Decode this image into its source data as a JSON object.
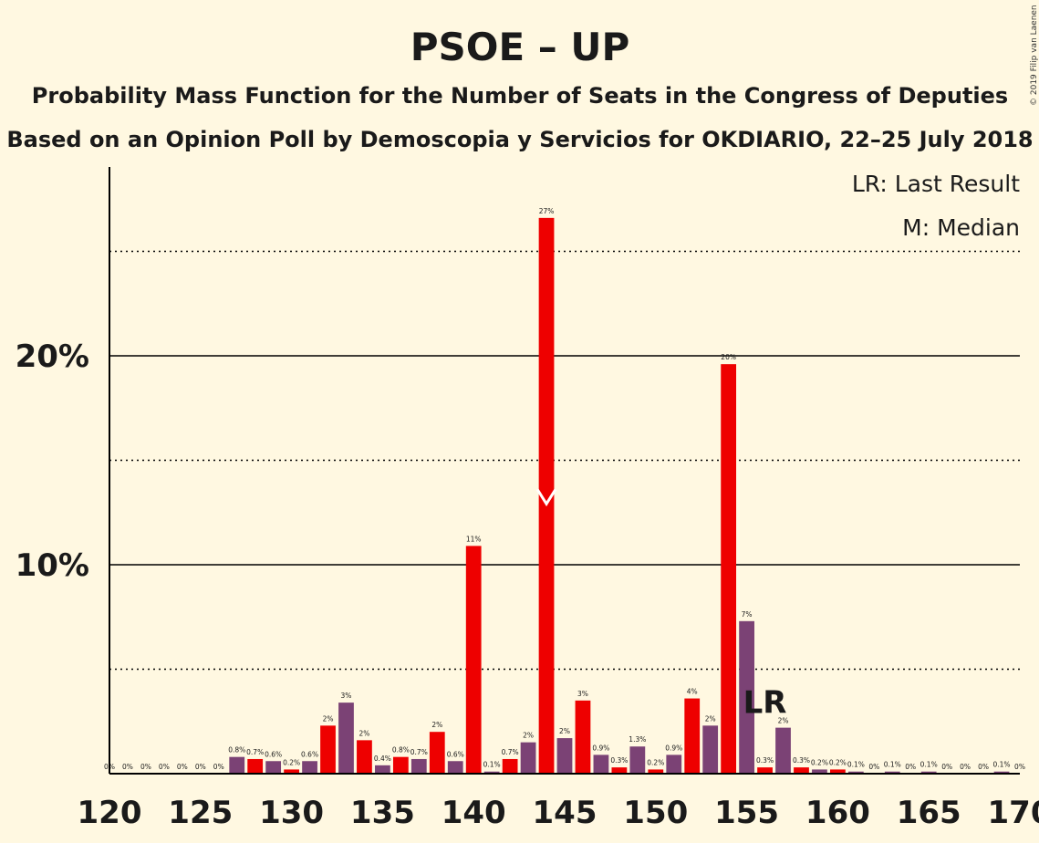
{
  "copyright": "© 2019 Filip van Laenen",
  "chart_data": {
    "type": "bar",
    "title": "PSOE – UP",
    "subtitle1": "Probability Mass Function for the Number of Seats in the Congress of Deputies",
    "subtitle2": "Based on an Opinion Poll by Demoscopia y Servicios for OKDIARIO, 22–25 July 2018",
    "legend": {
      "lr": "LR: Last Result",
      "m": "M: Median",
      "placement": "top-right"
    },
    "xlim": [
      120,
      170
    ],
    "ylim": [
      0,
      28
    ],
    "x_ticks": [
      120,
      125,
      130,
      135,
      140,
      145,
      150,
      155,
      160,
      165,
      170
    ],
    "y_ticks": [
      {
        "value": 10,
        "label": "10%"
      },
      {
        "value": 20,
        "label": "20%"
      }
    ],
    "dotted_gridlines": [
      5,
      15,
      25
    ],
    "colors": {
      "odd": "#7B4275",
      "even": "#EE0000",
      "background": "#FFF8E1",
      "axis": "#000000"
    },
    "median": {
      "seat": 144,
      "value": 13,
      "marker": "V"
    },
    "last_result": {
      "seat": 156,
      "label": "LR"
    },
    "x": [
      120,
      121,
      122,
      123,
      124,
      125,
      126,
      127,
      128,
      129,
      130,
      131,
      132,
      133,
      134,
      135,
      136,
      137,
      138,
      139,
      140,
      141,
      142,
      143,
      144,
      145,
      146,
      147,
      148,
      149,
      150,
      151,
      152,
      153,
      154,
      155,
      156,
      157,
      158,
      159,
      160,
      161,
      162,
      163,
      164,
      165,
      166,
      167,
      168,
      169,
      170
    ],
    "values": [
      0,
      0,
      0,
      0,
      0,
      0,
      0,
      0.8,
      0.7,
      0.6,
      0.2,
      0.6,
      2.3,
      3.4,
      1.6,
      0.4,
      0.8,
      0.7,
      2.0,
      0.6,
      10.9,
      0.1,
      0.7,
      1.5,
      26.6,
      1.7,
      3.5,
      0.9,
      0.3,
      1.3,
      0.2,
      0.9,
      3.6,
      2.3,
      19.6,
      7.3,
      0.3,
      2.2,
      0.3,
      0.2,
      0.2,
      0.1,
      0,
      0.1,
      0,
      0.1,
      0,
      0,
      0,
      0.1,
      0
    ],
    "labels": [
      "0%",
      "0%",
      "0%",
      "0%",
      "0%",
      "0%",
      "0%",
      "0.8%",
      "0.7%",
      "0.6%",
      "0.2%",
      "0.6%",
      "2%",
      "3%",
      "2%",
      "0.4%",
      "0.8%",
      "0.7%",
      "2%",
      "0.6%",
      "11%",
      "0.1%",
      "0.7%",
      "2%",
      "27%",
      "2%",
      "3%",
      "0.9%",
      "0.3%",
      "1.3%",
      "0.2%",
      "0.9%",
      "4%",
      "2%",
      "20%",
      "7%",
      "0.3%",
      "2%",
      "0.3%",
      "0.2%",
      "0.2%",
      "0.1%",
      "0%",
      "0.1%",
      "0%",
      "0.1%",
      "0%",
      "0%",
      "0%",
      "0.1%",
      "0%"
    ]
  }
}
